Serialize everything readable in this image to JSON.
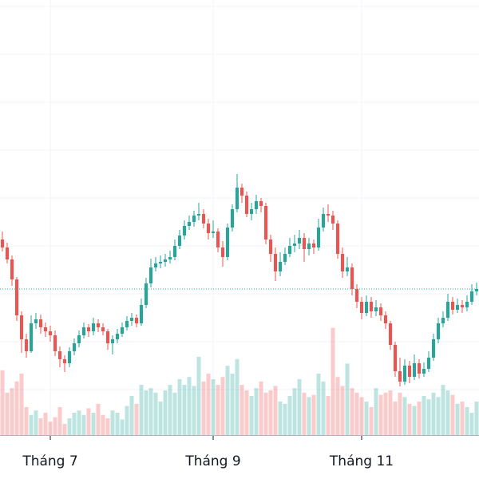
{
  "chart_data": {
    "type": "candlestick",
    "open": [
      30.0,
      29.0,
      27.5,
      25.0,
      20.5,
      17.5,
      16.0,
      19.5,
      20.0,
      19.0,
      18.5,
      18.0,
      16.0,
      15.0,
      14.5,
      16.0,
      17.0,
      18.0,
      19.0,
      18.5,
      19.5,
      19.0,
      18.5,
      17.0,
      17.5,
      18.2,
      19.0,
      19.8,
      20.2,
      19.5,
      21.8,
      24.5,
      26.5,
      27.0,
      27.2,
      27.5,
      27.8,
      29.2,
      30.5,
      31.7,
      32.2,
      33.0,
      33.2,
      32.0,
      30.8,
      31.0,
      29.0,
      27.8,
      31.5,
      33.8,
      36.5,
      35.5,
      33.2,
      33.8,
      34.8,
      34.2,
      30.0,
      28.2,
      26.0,
      27.2,
      28.2,
      29.2,
      29.5,
      30.2,
      28.8,
      29.5,
      29.0,
      31.5,
      33.2,
      33.0,
      32.0,
      28.2,
      26.0,
      26.5,
      23.8,
      22.2,
      20.8,
      22.2,
      21.0,
      21.5,
      20.5,
      19.5,
      16.8,
      13.5,
      12.2,
      14.2,
      12.8,
      14.5,
      13.2,
      13.8,
      15.2,
      17.5,
      19.5,
      20.2,
      22.2,
      21.2,
      21.8,
      21.5,
      22.2,
      23.5
    ],
    "high": [
      31.0,
      29.6,
      28.0,
      25.3,
      21.0,
      18.2,
      20.5,
      20.8,
      20.6,
      19.6,
      19.2,
      18.6,
      16.6,
      15.5,
      16.5,
      17.6,
      18.6,
      19.6,
      19.4,
      20.2,
      20.0,
      19.5,
      18.8,
      18.0,
      18.8,
      19.6,
      20.4,
      20.8,
      20.6,
      22.6,
      25.2,
      27.6,
      27.8,
      28.0,
      28.2,
      28.6,
      30.0,
      31.2,
      32.4,
      33.0,
      33.6,
      34.6,
      33.8,
      32.6,
      32.4,
      31.4,
      29.8,
      32.0,
      34.4,
      38.2,
      37.0,
      36.0,
      34.6,
      35.6,
      35.2,
      34.6,
      30.6,
      29.0,
      28.4,
      29.0,
      30.2,
      30.6,
      31.2,
      30.8,
      30.2,
      30.0,
      32.6,
      34.0,
      34.4,
      33.6,
      32.4,
      29.0,
      27.8,
      27.0,
      24.4,
      22.8,
      23.0,
      22.8,
      22.4,
      22.0,
      21.0,
      19.8,
      17.2,
      15.2,
      15.0,
      14.8,
      15.6,
      15.0,
      14.6,
      16.0,
      18.2,
      20.2,
      21.0,
      23.2,
      22.8,
      22.6,
      22.4,
      23.0,
      24.4,
      24.6
    ],
    "low": [
      28.5,
      27.0,
      24.2,
      19.8,
      15.8,
      15.2,
      15.8,
      18.8,
      18.2,
      17.8,
      17.2,
      15.4,
      14.0,
      13.4,
      14.0,
      15.5,
      16.5,
      17.6,
      17.8,
      18.0,
      18.4,
      18.0,
      16.2,
      15.6,
      17.0,
      17.8,
      18.6,
      19.2,
      19.0,
      19.2,
      21.4,
      24.0,
      26.0,
      26.4,
      26.6,
      27.0,
      27.4,
      28.8,
      30.0,
      31.2,
      31.6,
      32.4,
      31.4,
      30.0,
      30.2,
      28.4,
      26.6,
      27.4,
      31.0,
      33.4,
      34.6,
      32.8,
      32.4,
      33.2,
      33.4,
      29.4,
      27.2,
      24.8,
      25.4,
      26.8,
      27.8,
      28.4,
      28.8,
      27.2,
      28.0,
      28.2,
      28.6,
      31.0,
      32.2,
      31.2,
      27.6,
      25.2,
      25.4,
      23.0,
      21.4,
      20.0,
      20.4,
      20.2,
      20.4,
      19.8,
      18.8,
      16.2,
      12.8,
      11.6,
      11.8,
      12.0,
      12.4,
      12.6,
      12.8,
      13.4,
      14.8,
      17.0,
      19.0,
      19.8,
      20.6,
      20.8,
      20.8,
      21.0,
      21.8,
      23.0
    ],
    "close": [
      29.0,
      27.5,
      25.0,
      20.5,
      17.5,
      16.0,
      19.5,
      20.0,
      19.0,
      18.5,
      18.0,
      16.0,
      15.0,
      14.5,
      16.0,
      17.0,
      18.0,
      19.0,
      18.5,
      19.5,
      19.0,
      18.5,
      17.0,
      17.5,
      18.2,
      19.0,
      19.8,
      20.2,
      19.5,
      21.8,
      24.5,
      26.5,
      27.0,
      27.2,
      27.5,
      27.8,
      29.2,
      30.5,
      31.7,
      32.2,
      33.0,
      33.2,
      32.0,
      30.8,
      31.0,
      29.0,
      27.8,
      31.5,
      33.8,
      36.5,
      35.5,
      33.2,
      33.8,
      34.8,
      34.2,
      30.0,
      28.2,
      26.0,
      27.2,
      28.2,
      29.2,
      29.5,
      30.2,
      28.8,
      29.5,
      29.0,
      31.5,
      33.2,
      33.0,
      32.0,
      28.2,
      26.0,
      26.5,
      23.8,
      22.2,
      20.8,
      22.2,
      21.0,
      21.5,
      20.5,
      19.5,
      16.8,
      13.5,
      12.2,
      14.2,
      12.8,
      14.5,
      13.2,
      13.8,
      15.2,
      17.5,
      19.5,
      20.2,
      22.2,
      21.2,
      21.8,
      21.5,
      22.2,
      23.5,
      23.8
    ],
    "volume": [
      58,
      38,
      42,
      48,
      55,
      25,
      18,
      22,
      15,
      20,
      12,
      16,
      25,
      10,
      15,
      20,
      22,
      18,
      24,
      20,
      28,
      18,
      15,
      22,
      20,
      14,
      26,
      35,
      28,
      45,
      40,
      42,
      38,
      30,
      40,
      45,
      38,
      50,
      45,
      52,
      44,
      70,
      48,
      55,
      50,
      45,
      52,
      62,
      55,
      68,
      45,
      40,
      35,
      42,
      48,
      38,
      40,
      44,
      30,
      28,
      35,
      42,
      50,
      38,
      34,
      36,
      55,
      48,
      35,
      96,
      52,
      44,
      64,
      42,
      38,
      34,
      30,
      25,
      42,
      36,
      38,
      40,
      30,
      38,
      34,
      28,
      26,
      30,
      35,
      32,
      38,
      34,
      45,
      40,
      36,
      28,
      30,
      25,
      20,
      30
    ],
    "up_color": "#26a69a",
    "down_color": "#ef5350",
    "xlim": [
      -0.5,
      99.5
    ],
    "ylim": [
      5.5,
      60
    ],
    "volume_lim": [
      0,
      100
    ],
    "xticks": [
      {
        "value": 10,
        "label": "Tháng 7"
      },
      {
        "value": 44,
        "label": "Tháng 9"
      },
      {
        "value": 75,
        "label": "Tháng 11"
      }
    ],
    "grid": true
  }
}
